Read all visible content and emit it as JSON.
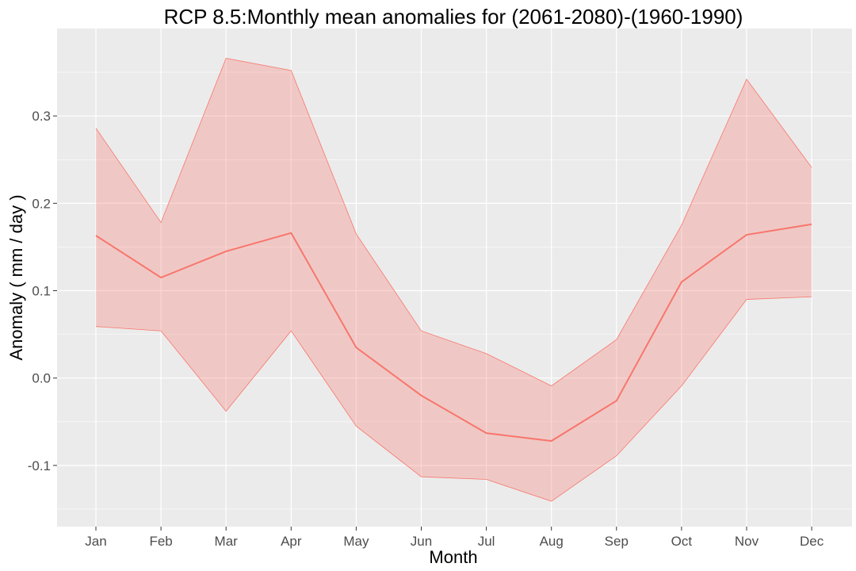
{
  "chart_data": {
    "type": "line",
    "title": "RCP 8.5:Monthly mean anomalies for (2061-2080)-(1960-1990)",
    "xlabel": "Month",
    "ylabel": "Anomaly ( mm / day )",
    "categories": [
      "Jan",
      "Feb",
      "Mar",
      "Apr",
      "May",
      "Jun",
      "Jul",
      "Aug",
      "Sep",
      "Oct",
      "Nov",
      "Dec"
    ],
    "ylim": [
      -0.17,
      0.4
    ],
    "yticks": [
      -0.1,
      0.0,
      0.1,
      0.2,
      0.3
    ],
    "ytick_labels": [
      "-0.1",
      "0.0",
      "0.1",
      "0.2",
      "0.3"
    ],
    "grid": true,
    "legend": "none",
    "series": [
      {
        "type": "line",
        "values": [
          0.163,
          0.115,
          0.145,
          0.166,
          0.035,
          -0.02,
          -0.063,
          -0.072,
          -0.026,
          0.11,
          0.164,
          0.176
        ]
      },
      {
        "type": "area-range",
        "upper": [
          0.286,
          0.178,
          0.366,
          0.352,
          0.165,
          0.054,
          0.028,
          -0.009,
          0.044,
          0.175,
          0.342,
          0.241
        ],
        "lower": [
          0.059,
          0.054,
          -0.038,
          0.054,
          -0.055,
          -0.113,
          -0.116,
          -0.141,
          -0.089,
          -0.009,
          0.09,
          0.093
        ]
      }
    ],
    "colors": {
      "line": "#F8766D",
      "ribbon_fill": "#F8766D",
      "panel_bg": "#EBEBEB",
      "grid_major": "#FFFFFF"
    }
  }
}
